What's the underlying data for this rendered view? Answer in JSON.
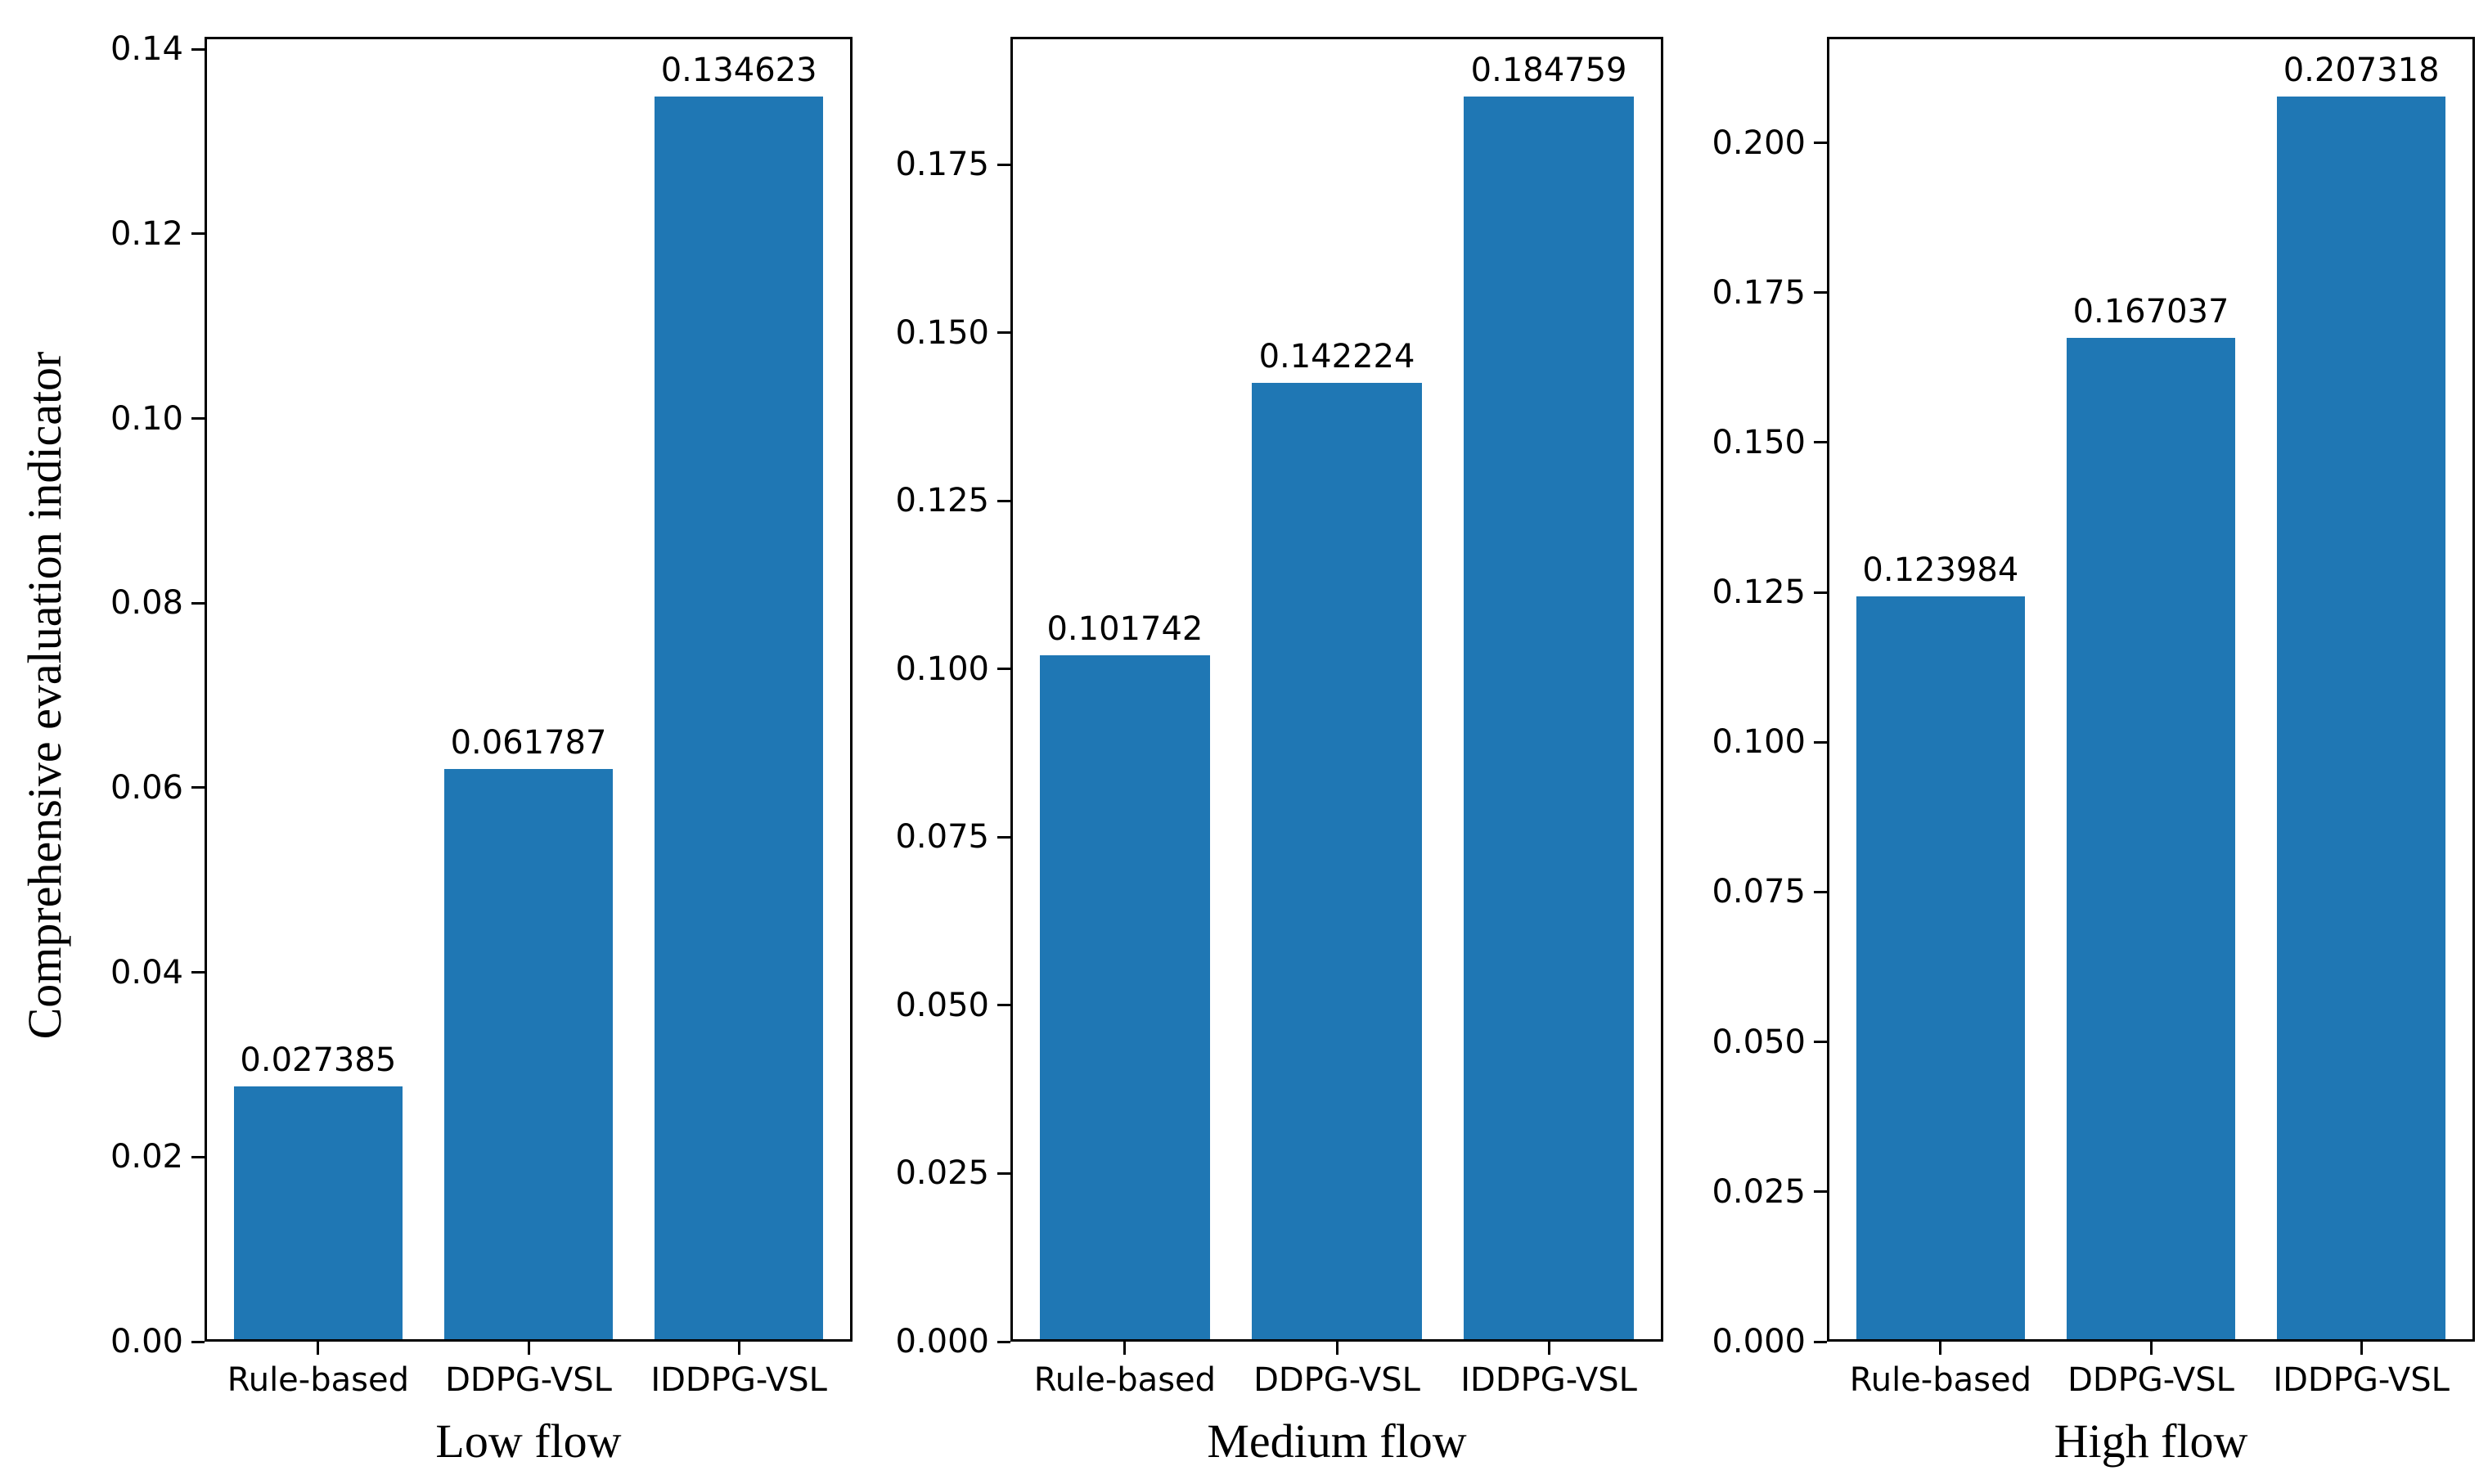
{
  "chart_data": {
    "type": "bar",
    "title": "",
    "ylabel": "Comprehensive evaluation indicator",
    "xlabel": "",
    "grid": false,
    "legend": null,
    "bar_color": "#1f77b4",
    "categories": [
      "Rule-based",
      "DDPG-VSL",
      "IDDPG-VSL"
    ],
    "panels": [
      {
        "xlabel": "Low flow",
        "values": [
          0.027385,
          0.061787,
          0.134623
        ],
        "bar_labels": [
          "0.027385",
          "0.061787",
          "0.134623"
        ],
        "ylim": [
          0,
          0.141354
        ],
        "ytick_values": [
          0.0,
          0.02,
          0.04,
          0.06,
          0.08,
          0.1,
          0.12,
          0.14
        ],
        "ytick_labels": [
          "0.00",
          "0.02",
          "0.04",
          "0.06",
          "0.08",
          "0.10",
          "0.12",
          "0.14"
        ]
      },
      {
        "xlabel": "Medium flow",
        "values": [
          0.101742,
          0.142224,
          0.184759
        ],
        "bar_labels": [
          "0.101742",
          "0.142224",
          "0.184759"
        ],
        "ylim": [
          0,
          0.193997
        ],
        "ytick_values": [
          0.0,
          0.025,
          0.05,
          0.075,
          0.1,
          0.125,
          0.15,
          0.175
        ],
        "ytick_labels": [
          "0.000",
          "0.025",
          "0.050",
          "0.075",
          "0.100",
          "0.125",
          "0.150",
          "0.175"
        ]
      },
      {
        "xlabel": "High flow",
        "values": [
          0.123984,
          0.167037,
          0.207318
        ],
        "bar_labels": [
          "0.123984",
          "0.167037",
          "0.207318"
        ],
        "ylim": [
          0,
          0.217684
        ],
        "ytick_values": [
          0.0,
          0.025,
          0.05,
          0.075,
          0.1,
          0.125,
          0.15,
          0.175,
          0.2
        ],
        "ytick_labels": [
          "0.000",
          "0.025",
          "0.050",
          "0.075",
          "0.100",
          "0.125",
          "0.150",
          "0.175",
          "0.200"
        ]
      }
    ]
  }
}
